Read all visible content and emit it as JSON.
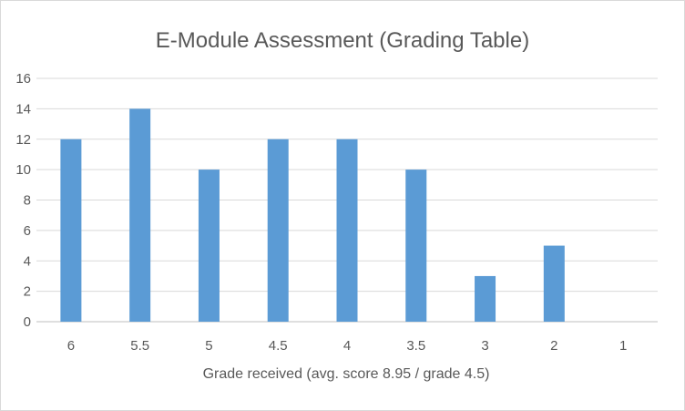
{
  "chart_data": {
    "type": "bar",
    "title": "E-Module Assessment (Grading Table)",
    "xlabel": "Grade received (avg. score 8.95 / grade 4.5)",
    "ylabel": "",
    "categories": [
      "6",
      "5.5",
      "5",
      "4.5",
      "4",
      "3.5",
      "3",
      "2",
      "1"
    ],
    "values": [
      12,
      14,
      10,
      12,
      12,
      10,
      3,
      5,
      0
    ],
    "ylim": [
      0,
      16
    ],
    "yticks": [
      0,
      2,
      4,
      6,
      8,
      10,
      12,
      14,
      16
    ],
    "grid": true,
    "legend": "none",
    "bar_color": "#5b9bd5"
  }
}
